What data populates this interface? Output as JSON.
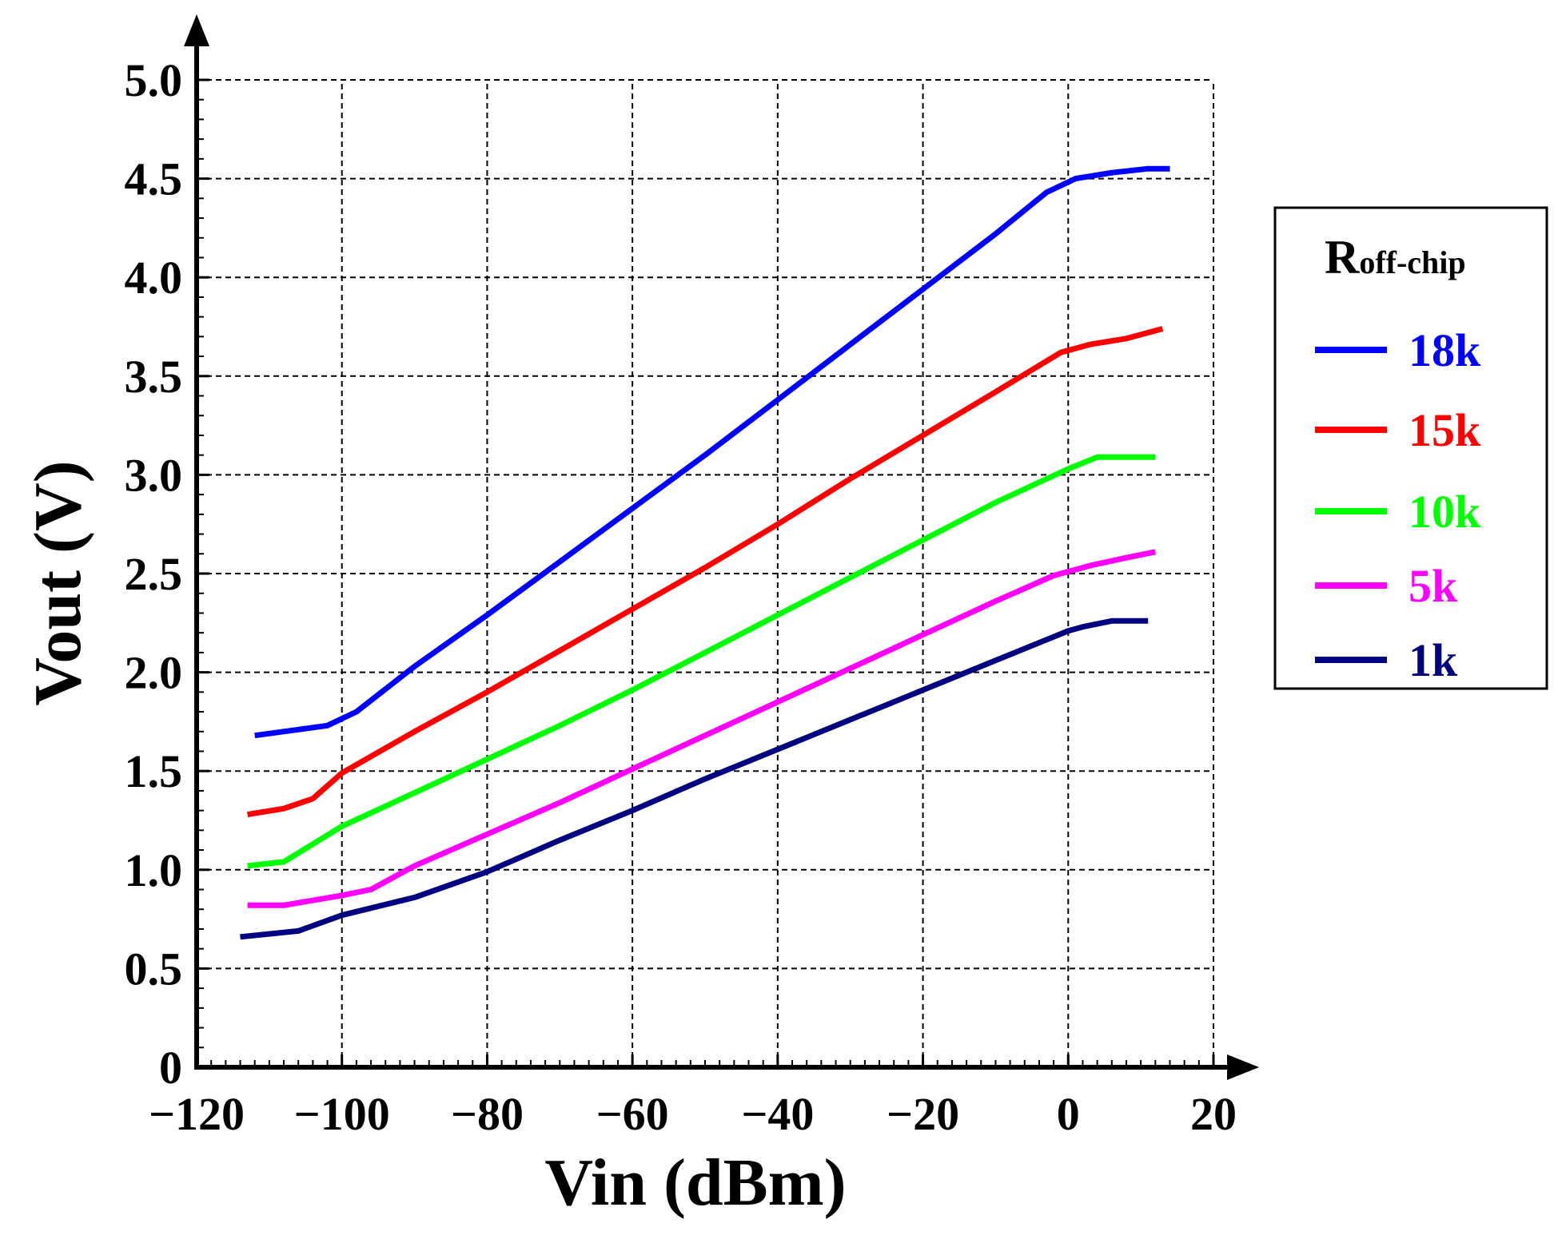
{
  "chart_data": {
    "type": "line",
    "title": "",
    "xlabel": "Vin (dBm)",
    "ylabel": "Vout (V)",
    "xlim": [
      -120,
      20
    ],
    "ylim": [
      0,
      5.0
    ],
    "x_ticks": [
      -120,
      -100,
      -80,
      -60,
      -40,
      -20,
      0,
      20
    ],
    "x_tick_labels": [
      "−120",
      "−100",
      "−80",
      "−60",
      "−40",
      "−20",
      "0",
      "20"
    ],
    "y_ticks": [
      0,
      0.5,
      1.0,
      1.5,
      2.0,
      2.5,
      3.0,
      3.5,
      4.0,
      4.5,
      5.0
    ],
    "y_tick_labels": [
      "0",
      "0.5",
      "1.0",
      "1.5",
      "2.0",
      "2.5",
      "3.0",
      "3.5",
      "4.0",
      "4.5",
      "5.0"
    ],
    "grid": true,
    "legend": {
      "title_main": "R",
      "title_sub": "off-chip",
      "position": "right"
    },
    "series": [
      {
        "name": "18k",
        "color": "#0000ff",
        "x": [
          -112,
          -106,
          -102,
          -98,
          -90,
          -80,
          -70,
          -60,
          -50,
          -40,
          -30,
          -20,
          -10,
          -3,
          1,
          6,
          11,
          14
        ],
        "y": [
          1.68,
          1.71,
          1.73,
          1.8,
          2.03,
          2.29,
          2.56,
          2.83,
          3.1,
          3.38,
          3.66,
          3.94,
          4.22,
          4.43,
          4.5,
          4.53,
          4.55,
          4.55
        ]
      },
      {
        "name": "15k",
        "color": "#ff0000",
        "x": [
          -113,
          -108,
          -104,
          -100,
          -90,
          -80,
          -70,
          -60,
          -50,
          -40,
          -30,
          -20,
          -10,
          -1,
          3,
          8,
          13
        ],
        "y": [
          1.28,
          1.31,
          1.36,
          1.49,
          1.7,
          1.9,
          2.11,
          2.32,
          2.53,
          2.75,
          2.98,
          3.2,
          3.42,
          3.62,
          3.66,
          3.69,
          3.74
        ]
      },
      {
        "name": "10k",
        "color": "#00ff00",
        "x": [
          -113,
          -108,
          -100,
          -90,
          -80,
          -70,
          -60,
          -50,
          -40,
          -30,
          -20,
          -10,
          0,
          4,
          8,
          12
        ],
        "y": [
          1.02,
          1.04,
          1.22,
          1.39,
          1.56,
          1.73,
          1.91,
          2.1,
          2.29,
          2.48,
          2.67,
          2.86,
          3.03,
          3.09,
          3.09,
          3.09
        ]
      },
      {
        "name": "5k",
        "color": "#ff00ff",
        "x": [
          -113,
          -108,
          -100,
          -96,
          -90,
          -80,
          -70,
          -60,
          -50,
          -40,
          -30,
          -20,
          -10,
          -2,
          3,
          8,
          12
        ],
        "y": [
          0.82,
          0.82,
          0.87,
          0.9,
          1.02,
          1.18,
          1.34,
          1.51,
          1.68,
          1.85,
          2.02,
          2.19,
          2.36,
          2.49,
          2.54,
          2.58,
          2.61
        ]
      },
      {
        "name": "1k",
        "color": "#000080",
        "x": [
          -114,
          -106,
          -100,
          -90,
          -80,
          -70,
          -60,
          -50,
          -40,
          -30,
          -20,
          -10,
          0,
          2,
          6,
          11
        ],
        "y": [
          0.66,
          0.69,
          0.77,
          0.86,
          0.99,
          1.15,
          1.3,
          1.46,
          1.61,
          1.76,
          1.91,
          2.06,
          2.21,
          2.23,
          2.26,
          2.26
        ]
      }
    ]
  }
}
